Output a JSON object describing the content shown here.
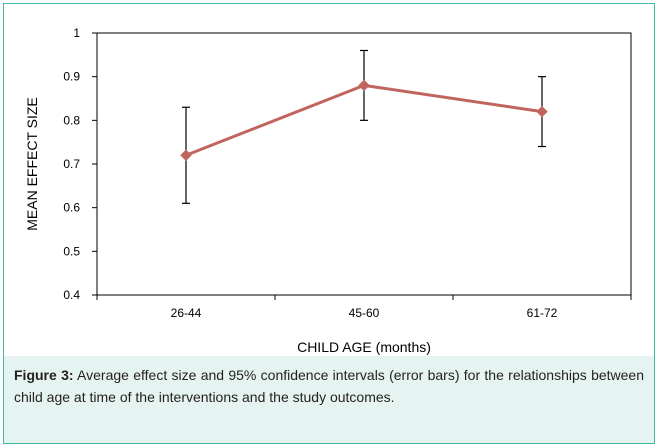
{
  "chart_data": {
    "type": "line",
    "categories": [
      "26-44",
      "45-60",
      "61-72"
    ],
    "values": [
      0.72,
      0.88,
      0.82
    ],
    "error_low": [
      0.61,
      0.8,
      0.74
    ],
    "error_high": [
      0.83,
      0.96,
      0.9
    ],
    "xlabel": "CHILD AGE (months)",
    "ylabel": "MEAN EFFECT SIZE",
    "ylim": [
      0.4,
      1.0
    ],
    "yticks": [
      "0.4",
      "0.5",
      "0.6",
      "0.7",
      "0.8",
      "0.9",
      "1"
    ],
    "ytick_values": [
      0.4,
      0.5,
      0.6,
      0.7,
      0.8,
      0.9,
      1.0
    ],
    "grid": false,
    "legend": "none",
    "line_color": "#c0645d"
  },
  "caption": {
    "label": "Figure 3:",
    "text": " Average effect size and 95% confidence intervals (error bars) for the relationships between child age at time of the interventions and the study outcomes."
  }
}
